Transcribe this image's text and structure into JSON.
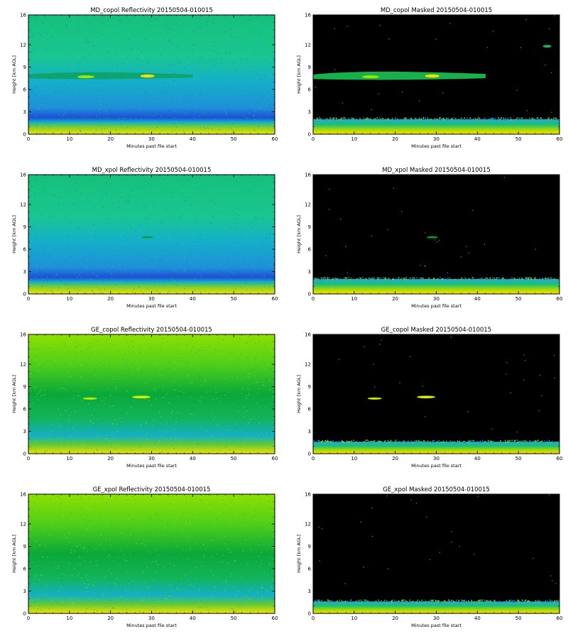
{
  "figure": {
    "panels": [
      {
        "id": "md-copol-refl",
        "title": "MD_copol Reflectivity 20150504-010015",
        "kind": "reflectivity",
        "instrument": "MD",
        "pol": "copol"
      },
      {
        "id": "md-copol-masked",
        "title": "MD_copol Masked 20150504-010015",
        "kind": "masked",
        "instrument": "MD",
        "pol": "copol"
      },
      {
        "id": "md-xpol-refl",
        "title": "MD_xpol Reflectivity 20150504-010015",
        "kind": "reflectivity",
        "instrument": "MD",
        "pol": "xpol"
      },
      {
        "id": "md-xpol-masked",
        "title": "MD_xpol Masked 20150504-010015",
        "kind": "masked",
        "instrument": "MD",
        "pol": "xpol"
      },
      {
        "id": "ge-copol-refl",
        "title": "GE_copol Reflectivity 20150504-010015",
        "kind": "reflectivity",
        "instrument": "GE",
        "pol": "copol"
      },
      {
        "id": "ge-copol-masked",
        "title": "GE_copol Masked 20150504-010015",
        "kind": "masked",
        "instrument": "GE",
        "pol": "copol"
      },
      {
        "id": "ge-xpol-refl",
        "title": "GE_xpol Reflectivity 20150504-010015",
        "kind": "reflectivity",
        "instrument": "GE",
        "pol": "xpol"
      },
      {
        "id": "ge-xpol-masked",
        "title": "GE_xpol Masked 20150504-010015",
        "kind": "masked",
        "instrument": "GE",
        "pol": "xpol"
      }
    ]
  },
  "chart_data": {
    "type": "heatmap",
    "xlabel": "Minutes past file start",
    "ylabel": "Height [km AGL]",
    "xlim": [
      0,
      60
    ],
    "ylim": [
      0,
      16
    ],
    "xticks": [
      0,
      10,
      20,
      30,
      40,
      50,
      60
    ],
    "yticks": [
      0,
      3,
      6,
      9,
      12,
      16
    ],
    "grid": false,
    "colors": {
      "masked_background": "#000000",
      "low": "#1f4fd6",
      "mid_low": "#14b0c8",
      "mid": "#16c07a",
      "mid_high": "#0aa83a",
      "high": "#8ee000",
      "very_high": "#f5e000"
    }
  }
}
